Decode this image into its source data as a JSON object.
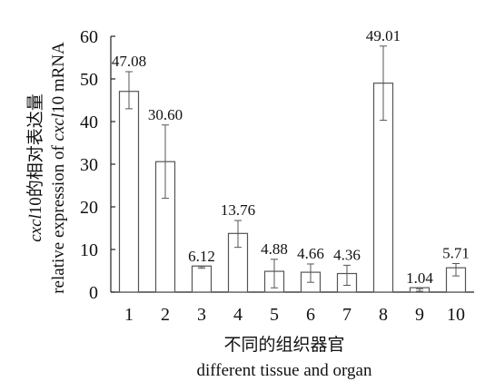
{
  "chart_data": {
    "type": "bar",
    "categories": [
      "1",
      "2",
      "3",
      "4",
      "5",
      "6",
      "7",
      "8",
      "9",
      "10"
    ],
    "values": [
      47.08,
      30.6,
      6.12,
      13.76,
      4.88,
      4.66,
      4.36,
      49.01,
      1.04,
      5.71
    ],
    "value_labels": [
      "47.08",
      "30.60",
      "6.12",
      "13.76",
      "4.88",
      "4.66",
      "4.36",
      "49.01",
      "1.04",
      "5.71"
    ],
    "error_low": [
      43.0,
      22.0,
      5.6,
      10.5,
      1.0,
      2.3,
      1.6,
      40.3,
      0.2,
      3.8
    ],
    "error_high": [
      51.7,
      39.2,
      6.0,
      16.8,
      7.7,
      6.6,
      6.3,
      57.7,
      0.8,
      6.7
    ],
    "ylim": [
      0,
      60
    ],
    "yticks": [
      "0",
      "10",
      "20",
      "30",
      "40",
      "50",
      "60"
    ],
    "xlabel_cn": "不同的组织器官",
    "xlabel_en": "different tissue and organ",
    "ylabel_cn": "cxcl10的相对表达量",
    "ylabel_en": "relative expression of cxcl10 mRNA",
    "ylabel_cn_parts": [
      "cxcl",
      "10的相对表达量"
    ],
    "ylabel_en_parts": [
      "relative expression of ",
      "cxcl",
      "10 mRNA"
    ],
    "bar_fill": "#ffffff",
    "bar_stroke": "#555555",
    "error_color": "#555555",
    "grid": false,
    "legend": "none"
  }
}
